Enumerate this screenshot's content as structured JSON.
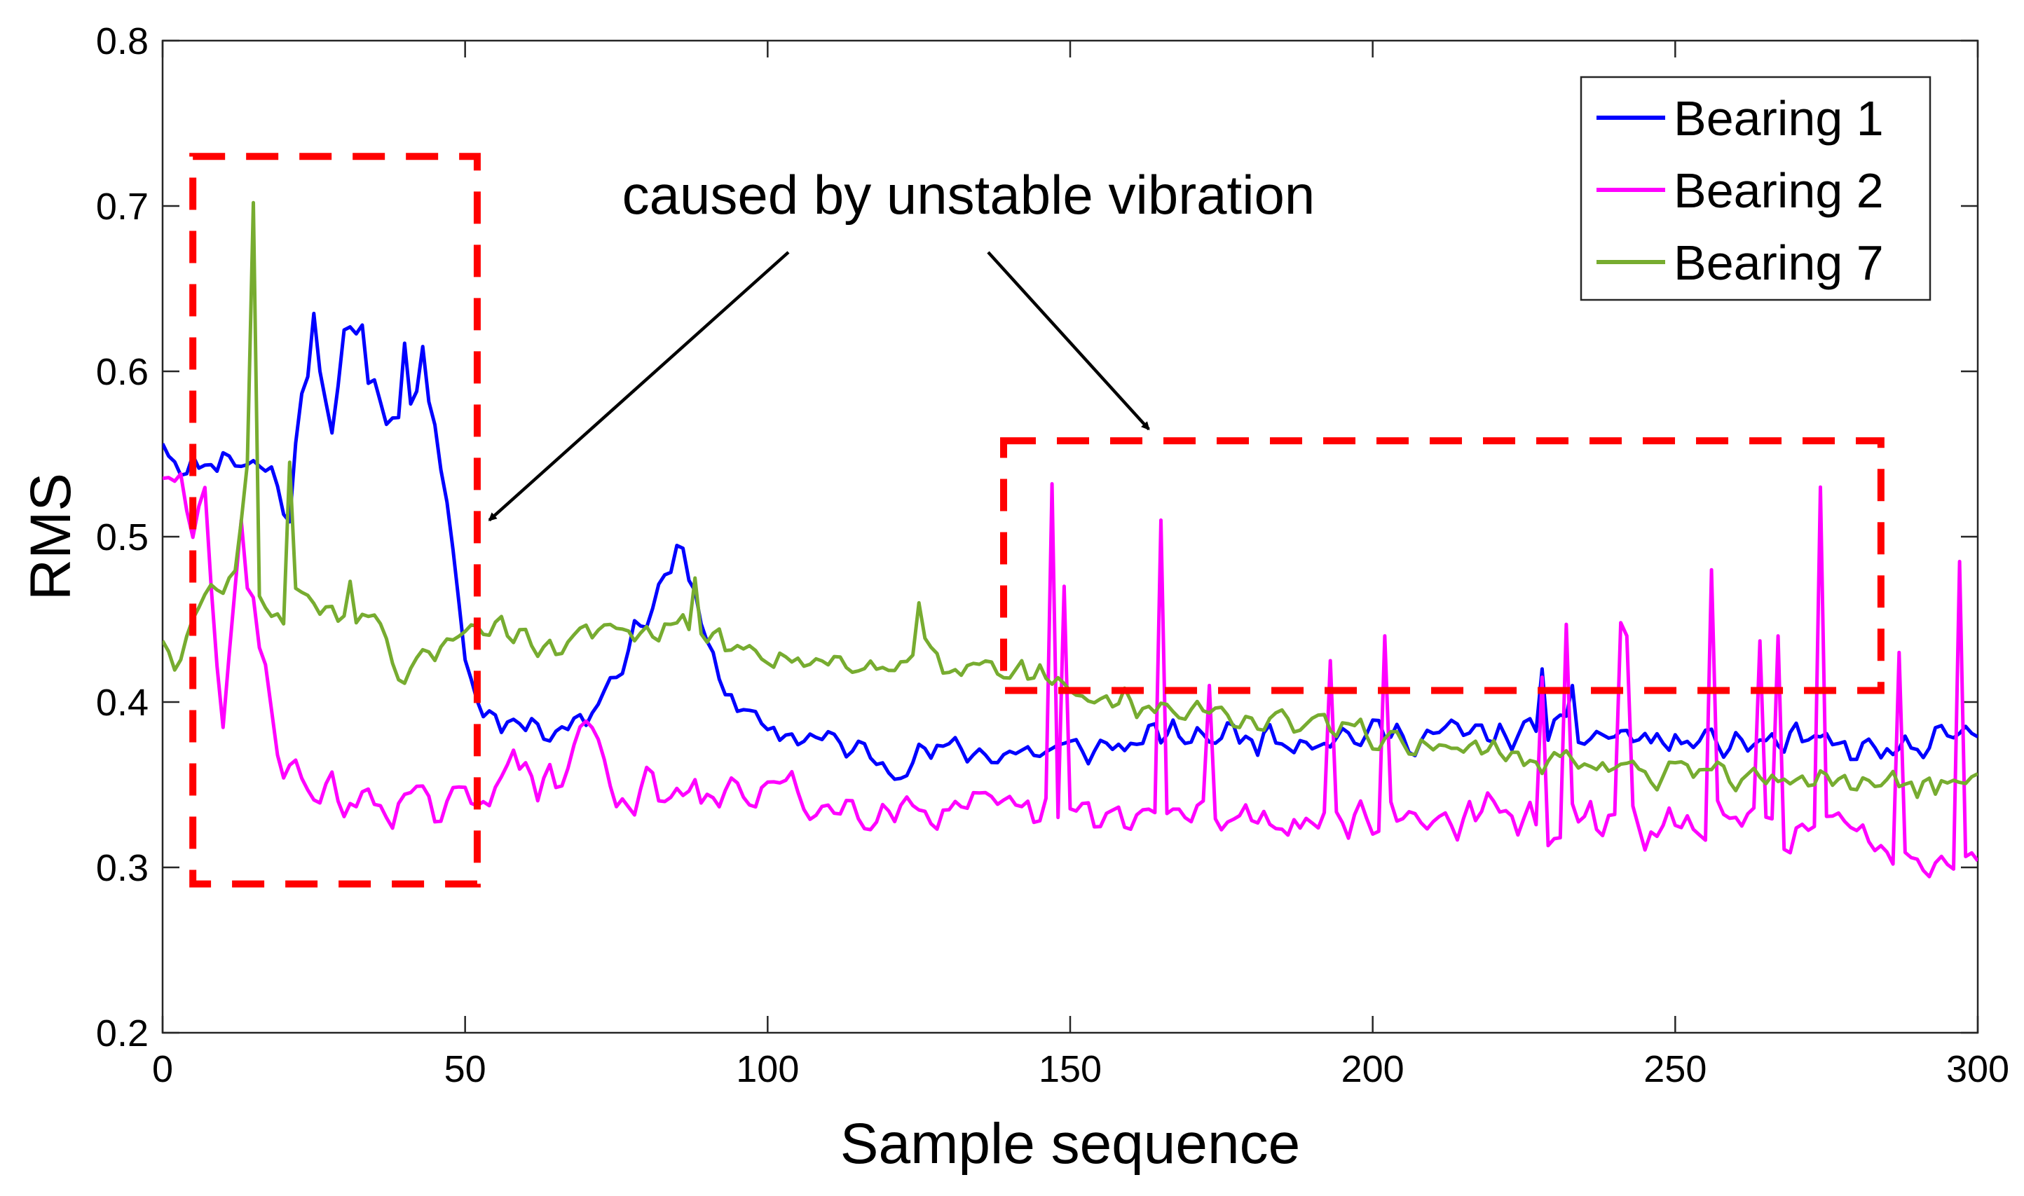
{
  "chart_data": {
    "type": "line",
    "title": "",
    "xlabel": "Sample sequence",
    "ylabel": "RMS",
    "xlim": [
      0,
      300
    ],
    "ylim": [
      0.2,
      0.8
    ],
    "xticks": [
      0,
      50,
      100,
      150,
      200,
      250,
      300
    ],
    "yticks": [
      0.2,
      0.3,
      0.4,
      0.5,
      0.6,
      0.7,
      0.8
    ],
    "xtick_labels": [
      "0",
      "50",
      "100",
      "150",
      "200",
      "250",
      "300"
    ],
    "ytick_labels": [
      "0.2",
      "0.3",
      "0.4",
      "0.5",
      "0.6",
      "0.7",
      "0.8"
    ],
    "grid": false,
    "legend_position": "top-right",
    "annotation": {
      "text": "caused by unstable vibration",
      "arrow_targets": [
        [
          54,
          0.51
        ],
        [
          163,
          0.565
        ]
      ],
      "boxes": [
        {
          "x0": 5,
          "x1": 52,
          "y0": 0.29,
          "y1": 0.73
        },
        {
          "x0": 139,
          "x1": 284,
          "y0": 0.407,
          "y1": 0.558
        }
      ]
    },
    "series": [
      {
        "name": "Bearing 1",
        "color": "#0000ff",
        "anchors": [
          [
            0,
            0.56
          ],
          [
            4,
            0.54
          ],
          [
            10,
            0.55
          ],
          [
            18,
            0.54
          ],
          [
            21,
            0.51
          ],
          [
            23,
            0.59
          ],
          [
            25,
            0.62
          ],
          [
            28,
            0.57
          ],
          [
            31,
            0.62
          ],
          [
            34,
            0.6
          ],
          [
            38,
            0.57
          ],
          [
            42,
            0.58
          ],
          [
            45,
            0.57
          ],
          [
            47,
            0.52
          ],
          [
            50,
            0.43
          ],
          [
            52,
            0.4
          ],
          [
            60,
            0.385
          ],
          [
            70,
            0.39
          ],
          [
            78,
            0.44
          ],
          [
            85,
            0.49
          ],
          [
            89,
            0.45
          ],
          [
            95,
            0.39
          ],
          [
            105,
            0.38
          ],
          [
            110,
            0.375
          ],
          [
            120,
            0.365
          ],
          [
            130,
            0.37
          ],
          [
            140,
            0.37
          ],
          [
            150,
            0.37
          ],
          [
            160,
            0.375
          ],
          [
            170,
            0.38
          ],
          [
            180,
            0.38
          ],
          [
            190,
            0.38
          ],
          [
            200,
            0.38
          ],
          [
            210,
            0.38
          ],
          [
            220,
            0.38
          ],
          [
            230,
            0.38
          ],
          [
            240,
            0.38
          ],
          [
            250,
            0.375
          ],
          [
            260,
            0.375
          ],
          [
            270,
            0.375
          ],
          [
            280,
            0.37
          ],
          [
            290,
            0.37
          ],
          [
            300,
            0.38
          ]
        ],
        "noise": 0.013,
        "seed": 11,
        "spikes": [
          [
            25,
            0.635
          ],
          [
            30,
            0.625
          ],
          [
            33,
            0.628
          ],
          [
            40,
            0.617
          ],
          [
            43,
            0.615
          ],
          [
            86,
            0.493
          ],
          [
            228,
            0.42
          ],
          [
            233,
            0.41
          ]
        ]
      },
      {
        "name": "Bearing 2",
        "color": "#ff00ff",
        "anchors": [
          [
            0,
            0.54
          ],
          [
            5,
            0.5
          ],
          [
            7,
            0.53
          ],
          [
            10,
            0.38
          ],
          [
            12,
            0.46
          ],
          [
            15,
            0.47
          ],
          [
            18,
            0.4
          ],
          [
            20,
            0.355
          ],
          [
            25,
            0.35
          ],
          [
            30,
            0.34
          ],
          [
            40,
            0.34
          ],
          [
            47,
            0.33
          ],
          [
            50,
            0.34
          ],
          [
            55,
            0.355
          ],
          [
            60,
            0.36
          ],
          [
            65,
            0.345
          ],
          [
            70,
            0.39
          ],
          [
            75,
            0.345
          ],
          [
            80,
            0.345
          ],
          [
            90,
            0.34
          ],
          [
            100,
            0.35
          ],
          [
            110,
            0.335
          ],
          [
            120,
            0.34
          ],
          [
            130,
            0.335
          ],
          [
            140,
            0.33
          ],
          [
            150,
            0.33
          ],
          [
            160,
            0.33
          ],
          [
            170,
            0.33
          ],
          [
            180,
            0.33
          ],
          [
            190,
            0.33
          ],
          [
            200,
            0.33
          ],
          [
            210,
            0.33
          ],
          [
            220,
            0.33
          ],
          [
            230,
            0.325
          ],
          [
            240,
            0.325
          ],
          [
            250,
            0.325
          ],
          [
            260,
            0.325
          ],
          [
            270,
            0.325
          ],
          [
            280,
            0.32
          ],
          [
            290,
            0.31
          ],
          [
            300,
            0.305
          ]
        ],
        "noise": 0.017,
        "seed": 29,
        "spikes": [
          [
            3,
            0.538
          ],
          [
            13,
            0.51
          ],
          [
            147,
            0.532
          ],
          [
            149,
            0.47
          ],
          [
            165,
            0.51
          ],
          [
            173,
            0.41
          ],
          [
            193,
            0.425
          ],
          [
            202,
            0.44
          ],
          [
            228,
            0.415
          ],
          [
            232,
            0.447
          ],
          [
            241,
            0.448
          ],
          [
            242,
            0.44
          ],
          [
            256,
            0.48
          ],
          [
            264,
            0.437
          ],
          [
            267,
            0.44
          ],
          [
            274,
            0.53
          ],
          [
            287,
            0.43
          ],
          [
            297,
            0.485
          ]
        ]
      },
      {
        "name": "Bearing 7",
        "color": "#77ac30",
        "anchors": [
          [
            0,
            0.44
          ],
          [
            2,
            0.425
          ],
          [
            5,
            0.445
          ],
          [
            8,
            0.47
          ],
          [
            12,
            0.475
          ],
          [
            14,
            0.54
          ],
          [
            16,
            0.46
          ],
          [
            20,
            0.455
          ],
          [
            25,
            0.465
          ],
          [
            30,
            0.45
          ],
          [
            35,
            0.445
          ],
          [
            40,
            0.41
          ],
          [
            45,
            0.43
          ],
          [
            50,
            0.45
          ],
          [
            55,
            0.445
          ],
          [
            60,
            0.44
          ],
          [
            65,
            0.43
          ],
          [
            70,
            0.445
          ],
          [
            75,
            0.44
          ],
          [
            80,
            0.44
          ],
          [
            85,
            0.445
          ],
          [
            90,
            0.44
          ],
          [
            95,
            0.43
          ],
          [
            100,
            0.43
          ],
          [
            110,
            0.425
          ],
          [
            120,
            0.42
          ],
          [
            125,
            0.44
          ],
          [
            130,
            0.42
          ],
          [
            135,
            0.43
          ],
          [
            140,
            0.42
          ],
          [
            150,
            0.405
          ],
          [
            160,
            0.4
          ],
          [
            170,
            0.395
          ],
          [
            180,
            0.39
          ],
          [
            190,
            0.385
          ],
          [
            200,
            0.38
          ],
          [
            210,
            0.375
          ],
          [
            220,
            0.37
          ],
          [
            230,
            0.365
          ],
          [
            240,
            0.36
          ],
          [
            250,
            0.355
          ],
          [
            260,
            0.355
          ],
          [
            270,
            0.355
          ],
          [
            280,
            0.35
          ],
          [
            290,
            0.35
          ],
          [
            300,
            0.355
          ]
        ],
        "noise": 0.011,
        "seed": 47,
        "spikes": [
          [
            15,
            0.702
          ],
          [
            21,
            0.545
          ],
          [
            31,
            0.473
          ],
          [
            88,
            0.475
          ],
          [
            125,
            0.46
          ]
        ]
      }
    ]
  }
}
